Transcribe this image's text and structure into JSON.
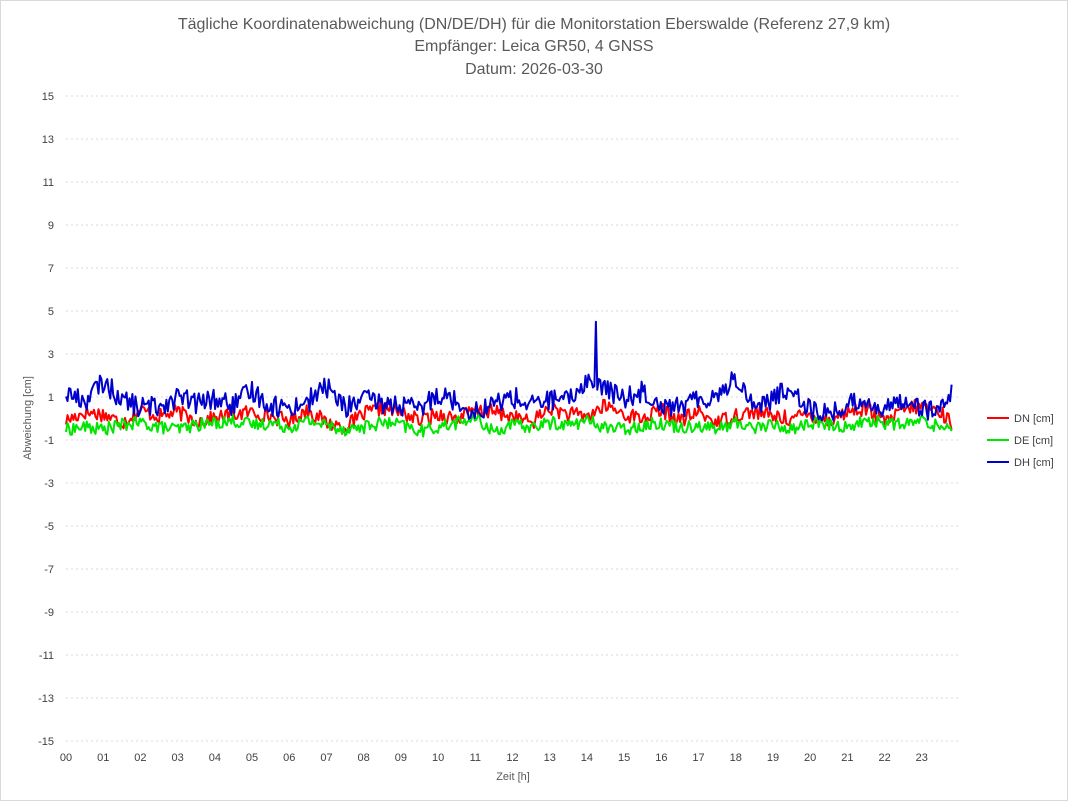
{
  "chart_data": {
    "type": "line",
    "title": [
      "Tägliche Koordinatenabweichung (DN/DE/DH) für die Monitorstation Eberswalde (Referenz 27,9 km)",
      "Empfänger: Leica GR50, 4 GNSS",
      "Datum: 2026-03-30"
    ],
    "xlabel": "Zeit [h]",
    "ylabel": "Abweichung [cm]",
    "xlim": [
      0,
      24
    ],
    "ylim": [
      -15,
      15
    ],
    "y_ticks": [
      15,
      13,
      11,
      9,
      7,
      5,
      3,
      1,
      -1,
      -3,
      -5,
      -7,
      -9,
      -11,
      -13,
      -15
    ],
    "x_tick_labels": [
      "00",
      "01",
      "02",
      "03",
      "04",
      "05",
      "06",
      "07",
      "08",
      "09",
      "10",
      "11",
      "12",
      "13",
      "14",
      "15",
      "16",
      "17",
      "18",
      "19",
      "20",
      "21",
      "22",
      "23"
    ],
    "grid": "horizontal dotted",
    "legend_position": "right",
    "x_hours": [
      0,
      0.5,
      1,
      1.5,
      2,
      2.5,
      3,
      3.5,
      4,
      4.5,
      5,
      5.5,
      6,
      6.5,
      7,
      7.5,
      8,
      8.5,
      9,
      9.5,
      10,
      10.5,
      11,
      11.5,
      12,
      12.5,
      13,
      13.5,
      14,
      14.5,
      15,
      15.5,
      16,
      16.5,
      17,
      17.5,
      18,
      18.5,
      19,
      19.5,
      20,
      20.5,
      21,
      21.5,
      22,
      22.5,
      23,
      23.5,
      23.8
    ],
    "series": [
      {
        "name": "DN [cm]",
        "color": "#ff0000",
        "values": [
          -0.1,
          0.3,
          0.2,
          -0.2,
          0.4,
          0.1,
          0.3,
          -0.1,
          0.0,
          0.2,
          0.3,
          0.1,
          -0.1,
          0.4,
          -0.2,
          -0.4,
          0.2,
          0.5,
          0.3,
          -0.1,
          0.2,
          0.0,
          0.4,
          0.3,
          0.1,
          -0.2,
          0.5,
          0.2,
          0.1,
          0.6,
          0.2,
          0.0,
          0.4,
          -0.1,
          0.3,
          -0.2,
          0.2,
          0.3,
          0.1,
          0.0,
          0.2,
          -0.1,
          0.3,
          0.5,
          -0.2,
          0.4,
          0.6,
          0.3,
          -0.2
        ]
      },
      {
        "name": "DE [cm]",
        "color": "#00e600",
        "values": [
          -0.5,
          -0.4,
          -0.5,
          -0.3,
          -0.2,
          -0.4,
          -0.5,
          -0.3,
          -0.2,
          -0.1,
          -0.3,
          -0.2,
          -0.4,
          -0.1,
          -0.3,
          -0.5,
          -0.4,
          -0.2,
          -0.3,
          -0.6,
          -0.4,
          -0.2,
          0.0,
          -0.6,
          -0.3,
          -0.4,
          -0.2,
          -0.3,
          -0.1,
          -0.4,
          -0.5,
          -0.3,
          -0.2,
          -0.4,
          -0.3,
          -0.5,
          -0.2,
          -0.4,
          -0.3,
          -0.5,
          -0.2,
          -0.3,
          -0.4,
          -0.1,
          -0.2,
          -0.3,
          -0.1,
          -0.4,
          -0.3
        ]
      },
      {
        "name": "DH [cm]",
        "color": "#0000cc",
        "values": [
          1.2,
          0.8,
          1.7,
          0.9,
          0.5,
          0.6,
          1.0,
          0.7,
          0.9,
          0.6,
          1.3,
          0.6,
          0.5,
          0.8,
          1.5,
          0.5,
          0.9,
          0.7,
          0.6,
          0.4,
          1.2,
          0.8,
          0.3,
          0.7,
          1.0,
          0.6,
          0.9,
          0.8,
          1.8,
          1.4,
          0.9,
          1.3,
          0.7,
          0.5,
          0.9,
          1.1,
          1.9,
          0.6,
          0.9,
          1.5,
          0.4,
          0.2,
          0.6,
          0.9,
          0.3,
          1.0,
          0.5,
          0.3,
          1.1
        ]
      }
    ],
    "annotations": [
      {
        "series": "DH [cm]",
        "x": 14.25,
        "y": 4.5
      }
    ]
  }
}
